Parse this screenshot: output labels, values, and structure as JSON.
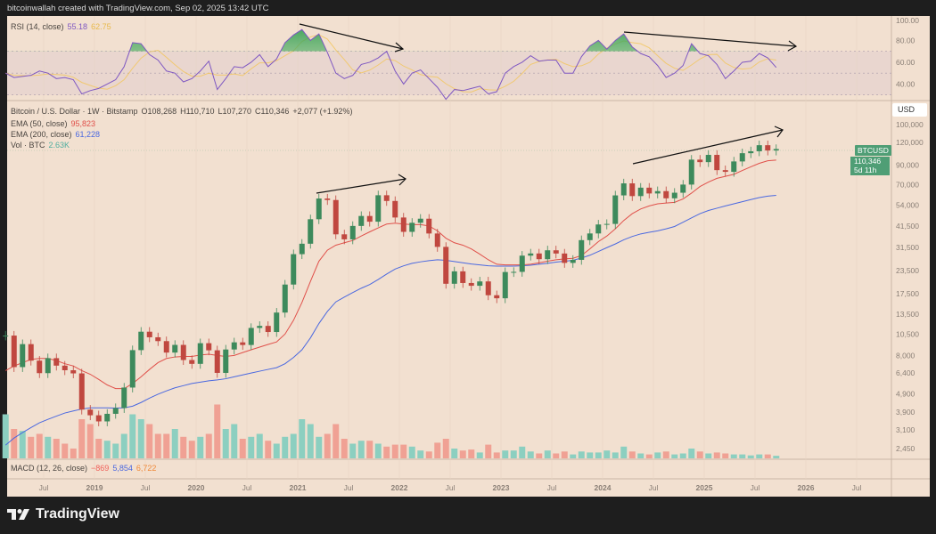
{
  "header": {
    "text": "bitcoinwallah created with TradingView.com, Sep 02, 2025 13:42 UTC"
  },
  "legend": {
    "rsi_label": "RSI (14, close)",
    "rsi_value": "55.18",
    "rsi_ma_value": "62.75",
    "symbol": "Bitcoin / U.S. Dollar · 1W · Bitstamp",
    "open": "O108,268",
    "high": "H110,710",
    "low": "L107,270",
    "close": "C110,346",
    "change": "+2,077 (+1.92%)",
    "ema50_label": "EMA (50, close)",
    "ema50_value": "95,823",
    "ema200_label": "EMA (200, close)",
    "ema200_value": "61,228",
    "vol_label": "Vol · BTC",
    "vol_value": "2.63K",
    "macd_label": "MACD (12, 26, close)",
    "macd_hist": "−869",
    "macd_line": "5,854",
    "macd_signal": "6,722"
  },
  "price_axis": {
    "currency": "USD",
    "symbol_tag": "BTCUSD",
    "last_price": "110,346",
    "countdown": "5d 11h"
  },
  "logo": {
    "text": "TradingView"
  },
  "colors": {
    "up": "#3d8a5c",
    "down": "#c0473f",
    "vol_up": "#8ccfc0",
    "vol_down": "#f0a194",
    "ema50": "#e0504a",
    "ema200": "#4a68e0",
    "rsi": "#7e57c2",
    "rsi_ma": "#f2c65a",
    "tag": "#4f9e75"
  },
  "chart_data": {
    "type": "candlestick",
    "title": "Bitcoin / U.S. Dollar · 1W · Bitstamp",
    "yscale": "log",
    "grid": false,
    "price_ticks": [
      "100,000",
      "120,000",
      "90,000",
      "70,000",
      "54,000",
      "41,500",
      "31,500",
      "23,500",
      "17,500",
      "13,500",
      "10,500",
      "8,000",
      "6,400",
      "4,900",
      "3,900",
      "3,100",
      "2,450"
    ],
    "rsi_ticks": [
      "100.00",
      "80.00",
      "60.00",
      "40.00"
    ],
    "rsi_levels": [
      70,
      30
    ],
    "x_ticks": [
      {
        "label": "Jul",
        "date": "2018-07"
      },
      {
        "label": "2019",
        "date": "2019-01"
      },
      {
        "label": "Jul",
        "date": "2019-07"
      },
      {
        "label": "2020",
        "date": "2020-01"
      },
      {
        "label": "Jul",
        "date": "2020-07"
      },
      {
        "label": "2021",
        "date": "2021-01"
      },
      {
        "label": "Jul",
        "date": "2021-07"
      },
      {
        "label": "2022",
        "date": "2022-01"
      },
      {
        "label": "Jul",
        "date": "2022-07"
      },
      {
        "label": "2023",
        "date": "2023-01"
      },
      {
        "label": "Jul",
        "date": "2023-07"
      },
      {
        "label": "2024",
        "date": "2024-01"
      },
      {
        "label": "Jul",
        "date": "2024-07"
      },
      {
        "label": "2025",
        "date": "2025-01"
      },
      {
        "label": "Jul",
        "date": "2025-07"
      },
      {
        "label": "2026",
        "date": "2026-01"
      },
      {
        "label": "Jul",
        "date": "2026-07"
      }
    ],
    "dates": [
      "2018-02",
      "2018-03",
      "2018-04",
      "2018-05",
      "2018-06",
      "2018-07",
      "2018-08",
      "2018-09",
      "2018-10",
      "2018-11",
      "2018-12",
      "2019-01",
      "2019-02",
      "2019-03",
      "2019-04",
      "2019-05",
      "2019-06",
      "2019-07",
      "2019-08",
      "2019-09",
      "2019-10",
      "2019-11",
      "2019-12",
      "2020-01",
      "2020-02",
      "2020-03",
      "2020-04",
      "2020-05",
      "2020-06",
      "2020-07",
      "2020-08",
      "2020-09",
      "2020-10",
      "2020-11",
      "2020-12",
      "2021-01",
      "2021-02",
      "2021-03",
      "2021-04",
      "2021-05",
      "2021-06",
      "2021-07",
      "2021-08",
      "2021-09",
      "2021-10",
      "2021-11",
      "2021-12",
      "2022-01",
      "2022-02",
      "2022-03",
      "2022-04",
      "2022-05",
      "2022-06",
      "2022-07",
      "2022-08",
      "2022-09",
      "2022-10",
      "2022-11",
      "2022-12",
      "2023-01",
      "2023-02",
      "2023-03",
      "2023-04",
      "2023-05",
      "2023-06",
      "2023-07",
      "2023-08",
      "2023-09",
      "2023-10",
      "2023-11",
      "2023-12",
      "2024-01",
      "2024-02",
      "2024-03",
      "2024-04",
      "2024-05",
      "2024-06",
      "2024-07",
      "2024-08",
      "2024-09",
      "2024-10",
      "2024-11",
      "2024-12",
      "2025-01",
      "2025-02",
      "2025-03",
      "2025-04",
      "2025-05",
      "2025-06",
      "2025-07",
      "2025-08",
      "2025-09"
    ],
    "close": [
      10300,
      6900,
      9240,
      7490,
      6390,
      7730,
      7030,
      6630,
      6370,
      4020,
      3740,
      3460,
      3810,
      4100,
      5320,
      8560,
      10820,
      10080,
      9600,
      8300,
      9150,
      7550,
      7190,
      9350,
      8540,
      6410,
      8630,
      9450,
      9140,
      11350,
      11650,
      10780,
      13800,
      19700,
      28990,
      33100,
      45200,
      58800,
      57700,
      37300,
      35000,
      41500,
      47100,
      43800,
      61300,
      57000,
      46200,
      38500,
      43200,
      45500,
      37700,
      31800,
      19900,
      23300,
      20100,
      19400,
      20500,
      17200,
      16550,
      23100,
      23150,
      28450,
      29250,
      27200,
      30450,
      29230,
      25940,
      26970,
      34650,
      37720,
      42280,
      42580,
      61180,
      71300,
      60650,
      67500,
      62700,
      64600,
      58970,
      63300,
      70200,
      96400,
      93400,
      102400,
      84350,
      82550,
      94200,
      104600,
      107200,
      115800,
      108250,
      110346
    ],
    "ema50": [
      6600,
      7000,
      7300,
      7600,
      7700,
      7700,
      7500,
      7200,
      7000,
      6600,
      6300,
      5900,
      5500,
      5250,
      5250,
      5600,
      6100,
      6700,
      7300,
      7700,
      7850,
      7900,
      7900,
      8050,
      8130,
      8000,
      7900,
      8000,
      8300,
      8600,
      8900,
      9200,
      9500,
      10500,
      12500,
      15700,
      20500,
      26500,
      30500,
      32500,
      33500,
      34500,
      36500,
      38500,
      40500,
      42500,
      43000,
      42500,
      42200,
      42200,
      41500,
      39000,
      35500,
      33500,
      32500,
      31000,
      29000,
      27000,
      25500,
      25300,
      25300,
      25300,
      25500,
      26000,
      26500,
      27000,
      27300,
      27500,
      28500,
      31000,
      34000,
      36500,
      40000,
      44500,
      48500,
      51500,
      53500,
      55000,
      55500,
      56000,
      58500,
      63000,
      68500,
      72500,
      76000,
      78000,
      80000,
      84000,
      88000,
      92000,
      95000,
      95823
    ],
    "ema200": [
      2560,
      2800,
      3000,
      3200,
      3400,
      3550,
      3700,
      3850,
      3950,
      4050,
      4110,
      4110,
      4110,
      4100,
      4110,
      4200,
      4400,
      4650,
      4890,
      5100,
      5300,
      5450,
      5600,
      5700,
      5800,
      5860,
      5950,
      6100,
      6250,
      6400,
      6550,
      6700,
      6850,
      7200,
      7800,
      8600,
      10000,
      12000,
      14000,
      15800,
      16800,
      17800,
      18800,
      19700,
      21000,
      22500,
      24000,
      25000,
      25800,
      26300,
      26700,
      27000,
      26800,
      26400,
      26000,
      25600,
      25300,
      25000,
      24900,
      24900,
      24900,
      25000,
      25200,
      25500,
      25800,
      26200,
      26500,
      26800,
      27600,
      28600,
      30000,
      31500,
      33000,
      34800,
      36300,
      37500,
      38300,
      39000,
      40000,
      41200,
      43500,
      46000,
      48500,
      50500,
      52000,
      53500,
      55000,
      56500,
      58000,
      59500,
      60600,
      61228
    ],
    "volume_k_btc": [
      45,
      30,
      28,
      22,
      25,
      22,
      20,
      15,
      10,
      40,
      35,
      20,
      18,
      15,
      25,
      45,
      40,
      35,
      25,
      25,
      30,
      22,
      18,
      22,
      25,
      55,
      30,
      35,
      20,
      22,
      25,
      18,
      15,
      22,
      25,
      40,
      35,
      22,
      25,
      35,
      20,
      15,
      18,
      18,
      15,
      12,
      14,
      14,
      12,
      8,
      7,
      16,
      20,
      10,
      8,
      9,
      6,
      14,
      6,
      8,
      8,
      12,
      7,
      5,
      8,
      5,
      7,
      4,
      7,
      6,
      6,
      8,
      6,
      12,
      7,
      5,
      4,
      6,
      7,
      4,
      5,
      10,
      7,
      5,
      6,
      5,
      4,
      4,
      3,
      4,
      4,
      2.63
    ],
    "rsi": [
      50,
      46,
      47,
      48,
      52,
      50,
      45,
      46,
      44,
      31,
      34,
      36,
      40,
      44,
      56,
      78,
      77,
      67,
      62,
      52,
      50,
      42,
      45,
      52,
      61,
      35,
      45,
      56,
      55,
      60,
      67,
      56,
      63,
      78,
      85,
      90,
      80,
      86,
      69,
      50,
      45,
      48,
      58,
      60,
      64,
      70,
      52,
      40,
      50,
      53,
      45,
      37,
      26,
      35,
      34,
      36,
      38,
      31,
      33,
      50,
      56,
      60,
      66,
      61,
      62,
      62,
      50,
      50,
      65,
      75,
      80,
      72,
      80,
      86,
      74,
      68,
      65,
      57,
      46,
      50,
      57,
      77,
      68,
      66,
      58,
      45,
      52,
      60,
      61,
      68,
      64,
      55.18
    ]
  }
}
